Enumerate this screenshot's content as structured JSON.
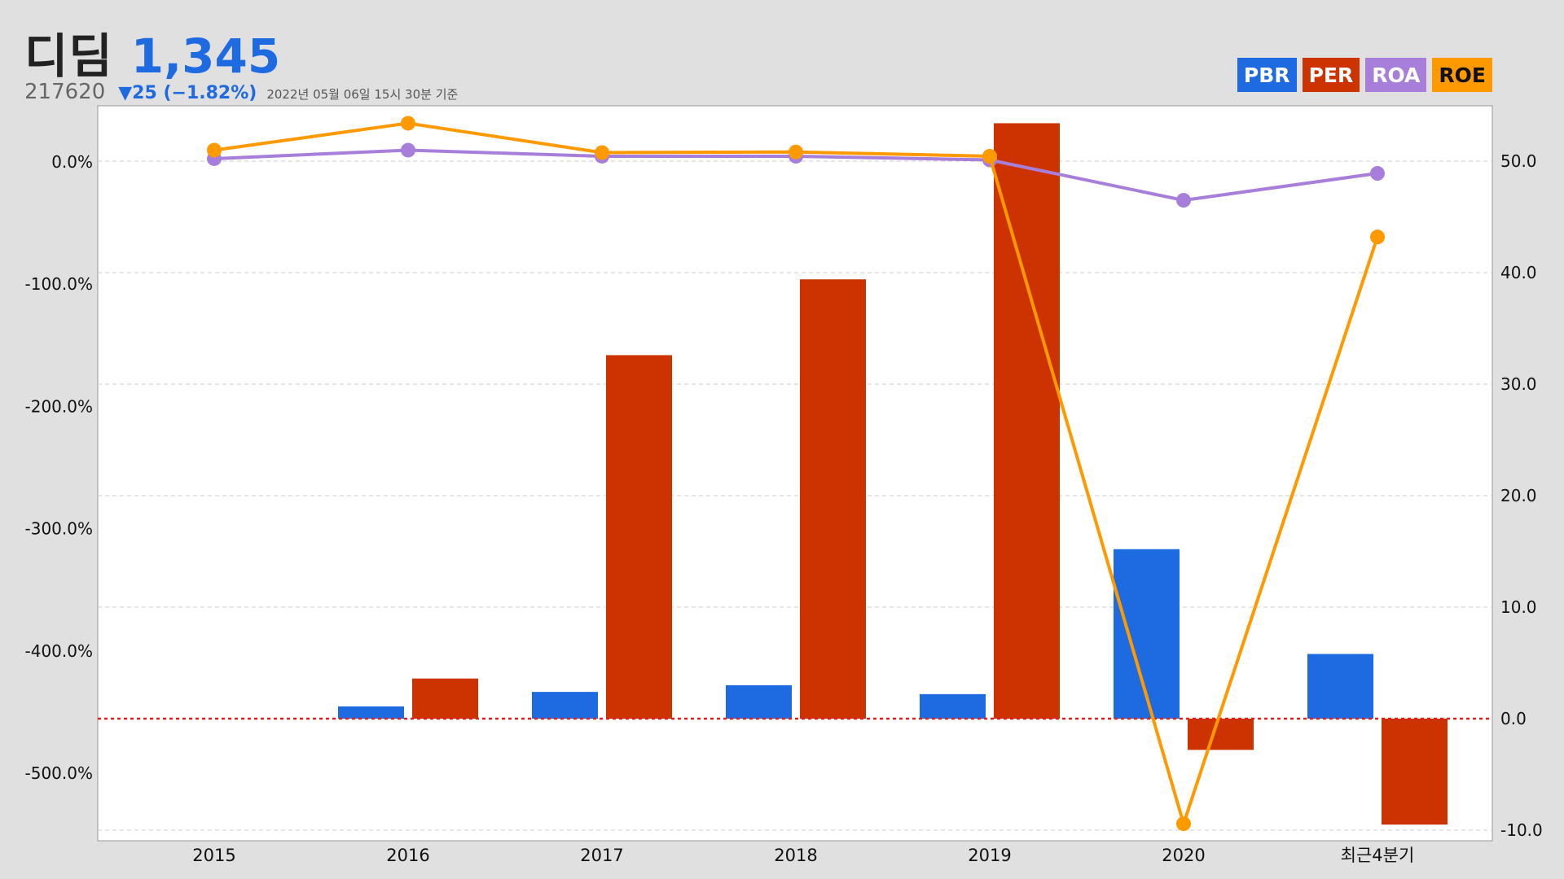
{
  "header": {
    "name": "디딤",
    "price": "1,345",
    "code": "217620",
    "change": "▼25 (−1.82%)",
    "timestamp": "2022년 05월 06일 15시 30분 기준"
  },
  "chart_data": {
    "type": "bar",
    "categories": [
      "2015",
      "2016",
      "2017",
      "2018",
      "2019",
      "2020",
      "최근4분기"
    ],
    "series": [
      {
        "name": "PBR",
        "kind": "bar",
        "axis": "right",
        "color": "#1e6ae0",
        "values": [
          null,
          1.1,
          2.4,
          3.0,
          2.2,
          15.2,
          5.8
        ]
      },
      {
        "name": "PER",
        "kind": "bar",
        "axis": "right",
        "color": "#cc3300",
        "values": [
          null,
          3.6,
          32.6,
          39.4,
          53.4,
          -2.8,
          -9.5
        ]
      },
      {
        "name": "ROA",
        "kind": "line",
        "axis": "left",
        "color": "#a77fdb",
        "values": [
          2.0,
          9.0,
          4.0,
          4.0,
          1.0,
          -32.0,
          -10.0
        ]
      },
      {
        "name": "ROE",
        "kind": "line",
        "axis": "left",
        "color": "#ff9900",
        "values": [
          9.0,
          31.0,
          7.0,
          7.5,
          4.0,
          -542.0,
          -62.0
        ]
      }
    ],
    "left_axis": {
      "ticks": [
        "0.0%",
        "-100.0%",
        "-200.0%",
        "-300.0%",
        "-400.0%",
        "-500.0%"
      ],
      "range": [
        -545,
        45
      ]
    },
    "right_axis": {
      "ticks": [
        "50.0",
        "40.0",
        "30.0",
        "20.0",
        "10.0",
        "0.0",
        "-10.0"
      ],
      "range": [
        -10,
        55
      ]
    },
    "baseline_color": "#e02020",
    "grid": true,
    "legend_position": "top-right"
  }
}
